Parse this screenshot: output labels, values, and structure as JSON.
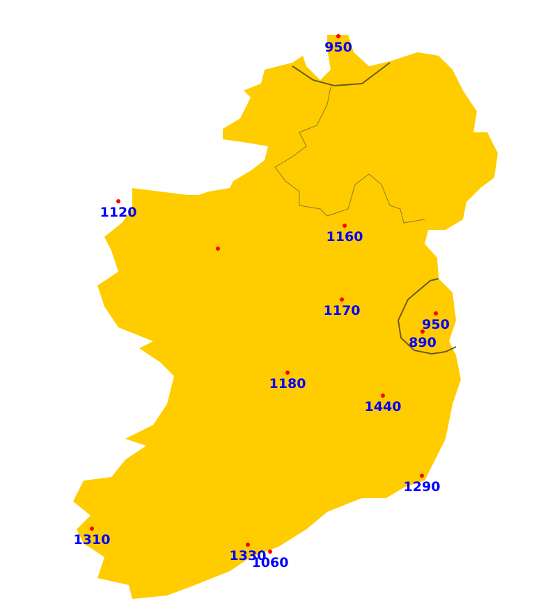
{
  "colors": {
    "land": "#ffcc00",
    "border": "#6b5a1a",
    "point": "#ff0000",
    "label": "#0000ff",
    "background": "#ffffff"
  },
  "points": [
    {
      "label": "950"
    },
    {
      "label": "1120"
    },
    {
      "label": ""
    },
    {
      "label": "1160"
    },
    {
      "label": "1170"
    },
    {
      "label": "950"
    },
    {
      "label": "890"
    },
    {
      "label": "1180"
    },
    {
      "label": "1440"
    },
    {
      "label": "1290"
    },
    {
      "label": "1310"
    },
    {
      "label": "1330"
    },
    {
      "label": "1060"
    }
  ]
}
